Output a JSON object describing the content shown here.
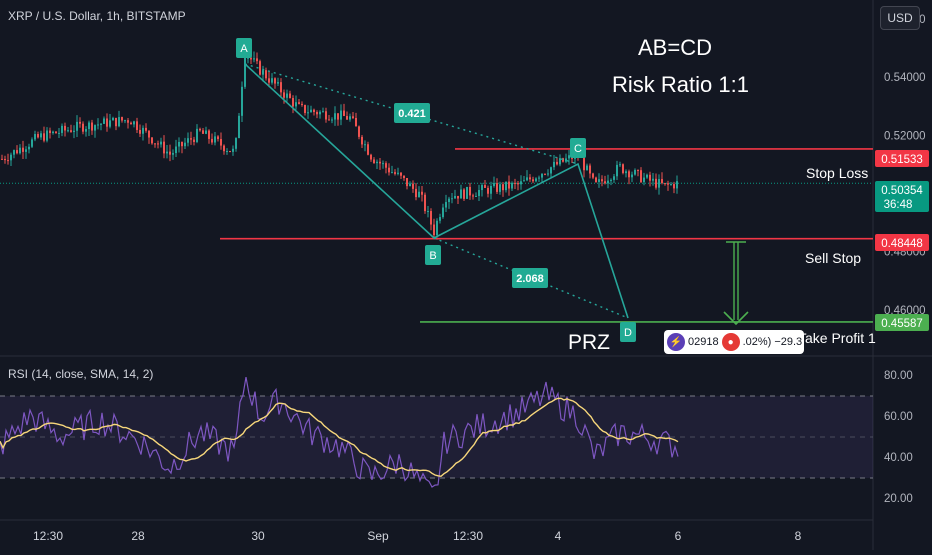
{
  "symbol": {
    "title": "XRP / U.S. Dollar, 1h, BITSTAMP"
  },
  "currency_button": "USD",
  "annotations": {
    "abcd": "AB=CD",
    "risk_ratio": "Risk Ratio 1:1",
    "prz": "PRZ",
    "stop_loss": "Stop Loss",
    "sell_stop": "Sell Stop",
    "take_profit": "Take Profit 1",
    "ratio_ab_c": "0.421",
    "ratio_bc_d": "2.068",
    "point_a": "A",
    "point_b": "B",
    "point_c": "C",
    "point_d": "D"
  },
  "price_axis": {
    "ticks": [
      "0.56000",
      "0.54000",
      "0.52000",
      "0.50000",
      "0.48000",
      "0.46000"
    ],
    "range": [
      0.4445,
      0.5665
    ]
  },
  "price_levels": {
    "stop_loss": {
      "value": "0.51533",
      "color": "#f23645"
    },
    "current": {
      "value": "0.50354",
      "countdown": "36:48",
      "color": "#089981"
    },
    "sell_stop": {
      "value": "0.48448",
      "color": "#f23645"
    },
    "take_profit": {
      "value": "0.45587",
      "color": "#4caf50"
    }
  },
  "time_axis": {
    "labels": [
      "12:30",
      "28",
      "30",
      "Sep",
      "12:30",
      "4",
      "6",
      "8"
    ]
  },
  "rsi": {
    "title": "RSI (14, close, SMA, 14, 2)",
    "ticks": [
      "80.00",
      "60.00",
      "40.00",
      "20.00"
    ],
    "range": [
      15,
      85
    ],
    "bands": [
      70,
      50,
      30
    ],
    "line_color": "#7e57c2",
    "sma_color": "#f7d77b"
  },
  "info_chip": {
    "text_left": "02918",
    "text_mid": ".02%)",
    "text_right": "−29.3"
  },
  "colors": {
    "up": "#26a69a",
    "down": "#ef5350",
    "pattern": "#26a69a",
    "background": "#131722"
  }
}
